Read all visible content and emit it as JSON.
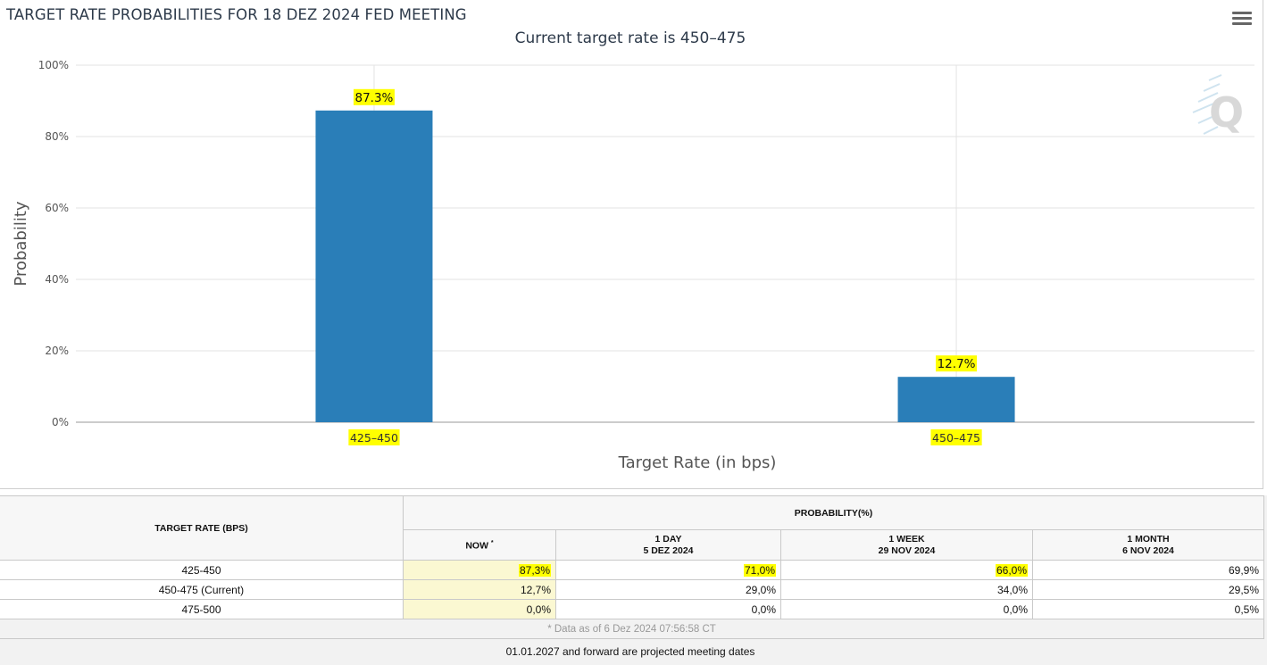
{
  "chart": {
    "title": "TARGET RATE PROBABILITIES FOR 18 DEZ 2024 FED MEETING",
    "subtitle": "Current target rate is 450–475",
    "menu_icon": "hamburger-menu-icon",
    "watermark_icon": "q-logo-icon",
    "bar_color": "#2a7eb8",
    "highlight_color": "#ffff00"
  },
  "chart_data": {
    "type": "bar",
    "title": "TARGET RATE PROBABILITIES FOR 18 DEZ 2024 FED MEETING",
    "subtitle": "Current target rate is 450–475",
    "categories": [
      "425–450",
      "450–475"
    ],
    "values": [
      87.3,
      12.7
    ],
    "data_labels": [
      "87.3%",
      "12.7%"
    ],
    "xlabel": "Target Rate (in bps)",
    "ylabel": "Probability",
    "ylim": [
      0,
      100
    ],
    "yticks": [
      "0%",
      "20%",
      "40%",
      "60%",
      "80%",
      "100%"
    ],
    "grid": true,
    "legend": "none"
  },
  "table": {
    "header_rate": "TARGET RATE (BPS)",
    "header_prob": "PROBABILITY(%)",
    "columns": [
      {
        "line1": "NOW",
        "line2": "",
        "sup": "*"
      },
      {
        "line1": "1 DAY",
        "line2": "5 DEZ 2024",
        "sup": ""
      },
      {
        "line1": "1 WEEK",
        "line2": "29 NOV 2024",
        "sup": ""
      },
      {
        "line1": "1 MONTH",
        "line2": "6 NOV 2024",
        "sup": ""
      }
    ],
    "rows": [
      {
        "rate": "425-450",
        "values": [
          "87,3%",
          "71,0%",
          "66,0%",
          "69,9%"
        ]
      },
      {
        "rate": "450-475 (Current)",
        "values": [
          "12,7%",
          "29,0%",
          "34,0%",
          "29,5%"
        ]
      },
      {
        "rate": "475-500",
        "values": [
          "0,0%",
          "0,0%",
          "0,0%",
          "0,5%"
        ]
      }
    ],
    "data_note": "* Data as of 6 Dez 2024 07:56:58 CT",
    "footer_note": "01.01.2027 and forward are projected meeting dates"
  }
}
